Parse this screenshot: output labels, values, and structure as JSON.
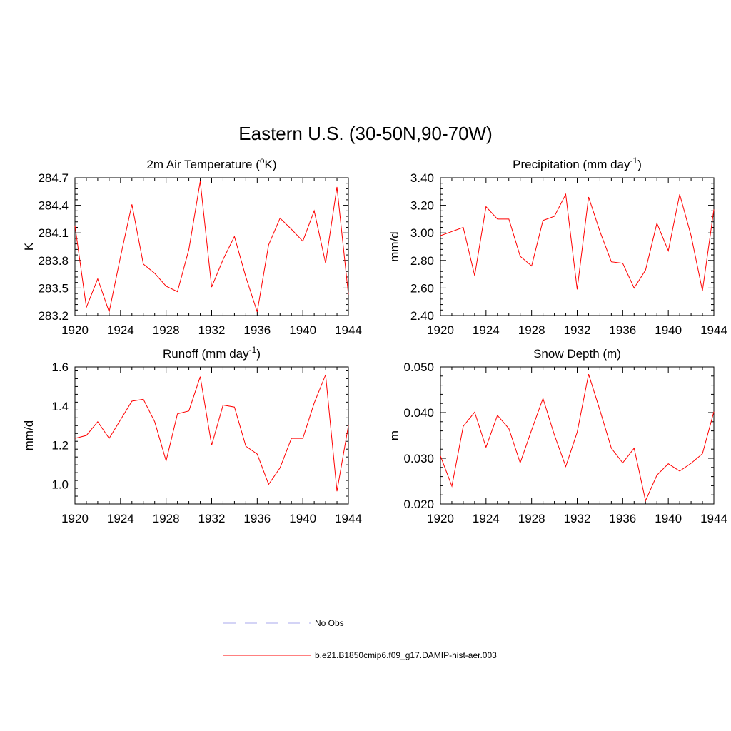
{
  "title": "Eastern U.S. (30-50N,90-70W)",
  "colors": {
    "model_line": "#ff0000",
    "obs_line": "#aaaaee"
  },
  "legend": [
    {
      "label": "No Obs",
      "style": "dashed",
      "color": "#aaaaee"
    },
    {
      "label": "b.e21.B1850cmip6.f09_g17.DAMIP-hist-aer.003",
      "style": "solid",
      "color": "#ff0000"
    }
  ],
  "chart_data": [
    {
      "type": "line",
      "title": "2m Air Temperature (oK)",
      "title_parts": {
        "pre": "2m Air Temperature (",
        "sup": "o",
        "post": "K)"
      },
      "ylabel": "K",
      "xlim": [
        1920,
        1944
      ],
      "ylim": [
        283.2,
        284.7
      ],
      "xticks": [
        1920,
        1924,
        1928,
        1932,
        1936,
        1940,
        1944
      ],
      "yticks": [
        "283.2",
        "283.5",
        "283.8",
        "284.1",
        "284.4",
        "284.7"
      ],
      "series": [
        {
          "x": [
            1920,
            1921,
            1922,
            1923,
            1924,
            1925,
            1926,
            1927,
            1928,
            1929,
            1930,
            1931,
            1932,
            1933,
            1934,
            1935,
            1936,
            1937,
            1938,
            1939,
            1940,
            1941,
            1942,
            1943,
            1944
          ],
          "values": [
            284.18,
            283.29,
            283.6,
            283.24,
            283.84,
            284.41,
            283.76,
            283.66,
            283.52,
            283.46,
            283.92,
            284.66,
            283.51,
            283.81,
            284.06,
            283.62,
            283.24,
            283.97,
            284.26,
            284.14,
            284.01,
            284.34,
            283.77,
            284.6,
            283.43
          ]
        }
      ]
    },
    {
      "type": "line",
      "title": "Precipitation (mm day-1)",
      "title_parts": {
        "pre": "Precipitation (mm day",
        "sup": "-1",
        "post": ")"
      },
      "ylabel": "mm/d",
      "xlim": [
        1920,
        1944
      ],
      "ylim": [
        2.4,
        3.4
      ],
      "xticks": [
        1920,
        1924,
        1928,
        1932,
        1936,
        1940,
        1944
      ],
      "yticks": [
        "2.40",
        "2.60",
        "2.80",
        "3.00",
        "3.20",
        "3.40"
      ],
      "series": [
        {
          "x": [
            1920,
            1921,
            1922,
            1923,
            1924,
            1925,
            1926,
            1927,
            1928,
            1929,
            1930,
            1931,
            1932,
            1933,
            1934,
            1935,
            1936,
            1937,
            1938,
            1939,
            1940,
            1941,
            1942,
            1943,
            1944
          ],
          "values": [
            2.98,
            3.01,
            3.04,
            2.69,
            3.19,
            3.1,
            3.1,
            2.83,
            2.76,
            3.09,
            3.12,
            3.28,
            2.59,
            3.26,
            3.01,
            2.79,
            2.78,
            2.6,
            2.73,
            3.07,
            2.87,
            3.28,
            2.98,
            2.58,
            3.17
          ]
        }
      ]
    },
    {
      "type": "line",
      "title": "Runoff (mm day-1)",
      "title_parts": {
        "pre": "Runoff (mm day",
        "sup": "-1",
        "post": ")"
      },
      "ylabel": "mm/d",
      "xlim": [
        1920,
        1944
      ],
      "ylim": [
        0.9,
        1.6
      ],
      "xticks": [
        1920,
        1924,
        1928,
        1932,
        1936,
        1940,
        1944
      ],
      "yticks": [
        "1.0",
        "1.2",
        "1.4",
        "1.6"
      ],
      "ytick_values": [
        1.0,
        1.2,
        1.4,
        1.6
      ],
      "series": [
        {
          "x": [
            1920,
            1921,
            1922,
            1923,
            1924,
            1925,
            1926,
            1927,
            1928,
            1929,
            1930,
            1931,
            1932,
            1933,
            1934,
            1935,
            1936,
            1937,
            1938,
            1939,
            1940,
            1941,
            1942,
            1943,
            1944
          ],
          "values": [
            1.235,
            1.25,
            1.32,
            1.235,
            1.33,
            1.425,
            1.435,
            1.32,
            1.12,
            1.36,
            1.375,
            1.55,
            1.2,
            1.405,
            1.395,
            1.195,
            1.155,
            1.0,
            1.085,
            1.235,
            1.235,
            1.415,
            1.56,
            0.965,
            1.3
          ]
        }
      ]
    },
    {
      "type": "line",
      "title": "Snow Depth (m)",
      "title_parts": {
        "pre": "Snow Depth (m)",
        "sup": "",
        "post": ""
      },
      "ylabel": "m",
      "xlim": [
        1920,
        1944
      ],
      "ylim": [
        0.02,
        0.05
      ],
      "xticks": [
        1920,
        1924,
        1928,
        1932,
        1936,
        1940,
        1944
      ],
      "yticks": [
        "0.020",
        "0.030",
        "0.040",
        "0.050"
      ],
      "series": [
        {
          "x": [
            1920,
            1921,
            1922,
            1923,
            1924,
            1925,
            1926,
            1927,
            1928,
            1929,
            1930,
            1931,
            1932,
            1933,
            1934,
            1935,
            1936,
            1937,
            1938,
            1939,
            1940,
            1941,
            1942,
            1943,
            1944
          ],
          "values": [
            0.0305,
            0.0239,
            0.037,
            0.0401,
            0.0324,
            0.0394,
            0.0365,
            0.029,
            0.0362,
            0.0431,
            0.0351,
            0.0282,
            0.0357,
            0.0484,
            0.0405,
            0.0322,
            0.029,
            0.0322,
            0.0207,
            0.0263,
            0.0288,
            0.0272,
            0.0289,
            0.031,
            0.0402
          ]
        }
      ]
    }
  ]
}
